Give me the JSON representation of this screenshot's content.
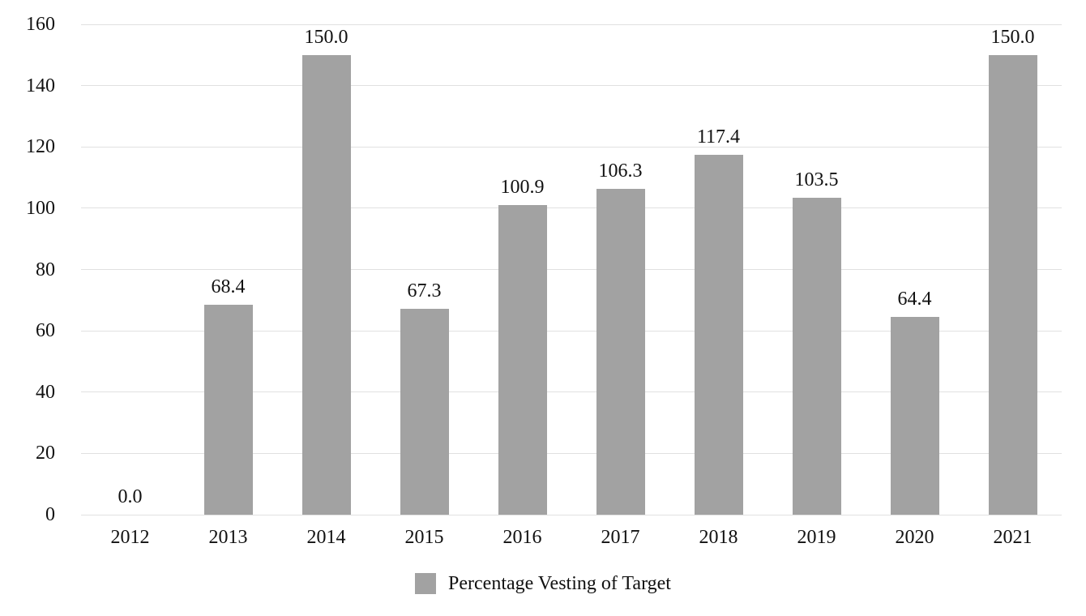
{
  "chart_data": {
    "type": "bar",
    "title": "",
    "legend": "Percentage Vesting of Target",
    "legend_position": "bottom",
    "categories": [
      "2012",
      "2013",
      "2014",
      "2015",
      "2016",
      "2017",
      "2018",
      "2019",
      "2020",
      "2021"
    ],
    "values": [
      0.0,
      68.4,
      150.0,
      67.3,
      100.9,
      106.3,
      117.4,
      103.5,
      64.4,
      150.0
    ],
    "value_labels": [
      "0.0",
      "68.4",
      "150.0",
      "67.3",
      "100.9",
      "106.3",
      "117.4",
      "103.5",
      "64.4",
      "150.0"
    ],
    "y_tick_labels": [
      "0",
      "20",
      "40",
      "60",
      "80",
      "100",
      "120",
      "140",
      "160"
    ],
    "y_ticks": [
      0,
      20,
      40,
      60,
      80,
      100,
      120,
      140,
      160
    ],
    "ylim": [
      0,
      160
    ],
    "xlabel": "",
    "ylabel": "",
    "grid": true,
    "colors": {
      "bar": "#A2A2A2",
      "gridline": "#E1E1E1",
      "text": "#111111",
      "background": "#FFFFFF"
    }
  }
}
